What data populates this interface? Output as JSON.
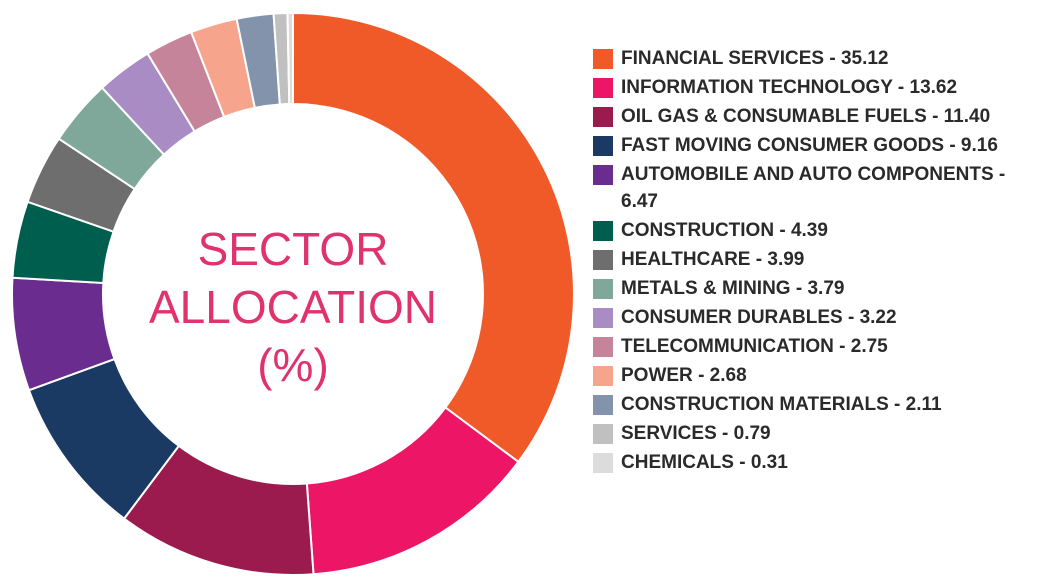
{
  "chart_data": {
    "type": "donut",
    "title": "SECTOR ALLOCATION (%)",
    "categories": [
      "FINANCIAL SERVICES",
      "INFORMATION TECHNOLOGY",
      "OIL GAS & CONSUMABLE FUELS",
      "FAST MOVING CONSUMER GOODS",
      "AUTOMOBILE AND AUTO COMPONENTS",
      "CONSTRUCTION",
      "HEALTHCARE",
      "METALS & MINING",
      "CONSUMER DURABLES",
      "TELECOMMUNICATION",
      "POWER",
      "CONSTRUCTION MATERIALS",
      "SERVICES",
      "CHEMICALS"
    ],
    "values": [
      35.12,
      13.62,
      11.4,
      9.16,
      6.47,
      4.39,
      3.99,
      3.79,
      3.22,
      2.75,
      2.68,
      2.11,
      0.79,
      0.31
    ],
    "value_labels": [
      "- 35.12",
      "- 13.62",
      "- 11.40",
      "- 9.16",
      "- 6.47",
      "- 4.39",
      "- 3.99",
      "- 3.79",
      "- 3.22",
      "- 2.75",
      "- 2.68",
      "- 2.11",
      "- 0.79",
      "- 0.31"
    ],
    "colors": [
      "#f05a28",
      "#ec1566",
      "#9b1b4e",
      "#1b3a63",
      "#6a2c8f",
      "#005e4f",
      "#6e6e6e",
      "#7fa89a",
      "#a98cc4",
      "#c6849a",
      "#f6a48b",
      "#8393ab",
      "#c0c0c0",
      "#dcdcdc"
    ]
  }
}
